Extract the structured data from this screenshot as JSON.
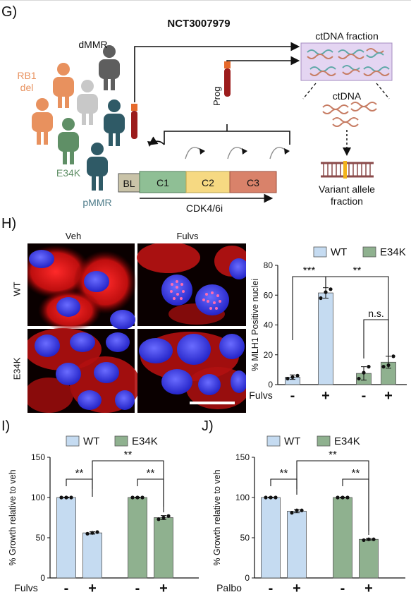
{
  "panel_g": {
    "letter": "G)",
    "trial_id": "NCT3007979",
    "labels": {
      "dmmr": "dMMR",
      "rb1_line1": "RB1",
      "rb1_line2": "del",
      "e34k": "E34K",
      "pmmr": "pMMR",
      "prog": "Prog",
      "ctdna_fraction": "ctDNA fraction",
      "ctdna": "ctDNA",
      "variant_line1": "Variant allele",
      "variant_line2": "fraction",
      "timeline_bl": "BL",
      "timeline_c1": "C1",
      "timeline_c2": "C2",
      "timeline_c3": "C3",
      "treatment": "CDK4/6i"
    },
    "colors": {
      "orange_person": "#e8915e",
      "gray_person": "#c8c8c8",
      "dark_person": "#5e5e5e",
      "green_person": "#5f8f66",
      "teal_person": "#2f5a66",
      "bl": "#c9c3a8",
      "c1": "#8fbf95",
      "c2": "#f6d982",
      "c3": "#d9826a",
      "ctdna_box": "#e4d5f2"
    }
  },
  "panel_h": {
    "letter": "H)",
    "col_veh": "Veh",
    "col_fulvs": "Fulvs",
    "row_wt": "WT",
    "row_e34k": "E34K"
  },
  "chart_data": [
    {
      "panel": "H)",
      "type": "bar",
      "ylabel": "% MLH1 Positive nuclei",
      "ylim": [
        0,
        80
      ],
      "yticks": [
        0,
        20,
        40,
        60,
        80
      ],
      "treatment_label": "Fulvs",
      "treatment_levels": [
        "-",
        "+",
        "-",
        "+"
      ],
      "legend": [
        "WT",
        "E34K"
      ],
      "legend_position": "top",
      "colors": [
        "#c5dbf1",
        "#8fb18f"
      ],
      "series": [
        {
          "name": "WT",
          "values": [
            5,
            61.5
          ],
          "points": [
            [
              4,
              5,
              6
            ],
            [
              58,
              62,
              64
            ]
          ]
        },
        {
          "name": "E34K",
          "values": [
            7.5,
            15
          ],
          "points": [
            [
              4,
              8,
              12
            ],
            [
              12,
              13,
              19
            ]
          ]
        }
      ],
      "significance": [
        {
          "label": "***",
          "from": 0,
          "to": 1
        },
        {
          "label": "**",
          "from": 1,
          "to": 3
        },
        {
          "label": "n.s.",
          "from": 2,
          "to": 3
        }
      ]
    },
    {
      "panel": "I)",
      "type": "bar",
      "ylabel": "% Growth relative to veh",
      "ylim": [
        0,
        150
      ],
      "yticks": [
        0,
        50,
        100,
        150
      ],
      "treatment_label": "Fulvs",
      "treatment_levels": [
        "-",
        "+",
        "-",
        "+"
      ],
      "legend": [
        "WT",
        "E34K"
      ],
      "legend_position": "top",
      "colors": [
        "#c5dbf1",
        "#8fb18f"
      ],
      "series": [
        {
          "name": "WT",
          "values": [
            100,
            56
          ],
          "points": [
            [
              100,
              100,
              100
            ],
            [
              55,
              56,
              57
            ]
          ]
        },
        {
          "name": "E34K",
          "values": [
            100,
            75
          ],
          "points": [
            [
              100,
              100,
              100
            ],
            [
              73,
              75,
              77
            ]
          ]
        }
      ],
      "significance": [
        {
          "label": "**",
          "from": 0,
          "to": 1
        },
        {
          "label": "**",
          "from": 1,
          "to": 3
        },
        {
          "label": "**",
          "from": 2,
          "to": 3
        }
      ]
    },
    {
      "panel": "J)",
      "type": "bar",
      "ylabel": "% Growth relative to veh",
      "ylim": [
        0,
        150
      ],
      "yticks": [
        0,
        50,
        100,
        150
      ],
      "treatment_label": "Palbo",
      "treatment_levels": [
        "-",
        "+",
        "-",
        "+"
      ],
      "legend": [
        "WT",
        "E34K"
      ],
      "legend_position": "top",
      "colors": [
        "#c5dbf1",
        "#8fb18f"
      ],
      "series": [
        {
          "name": "WT",
          "values": [
            100,
            83
          ],
          "points": [
            [
              100,
              100,
              100
            ],
            [
              81,
              84,
              84
            ]
          ]
        },
        {
          "name": "E34K",
          "values": [
            100,
            48
          ],
          "points": [
            [
              100,
              100,
              100
            ],
            [
              47,
              48,
              48
            ]
          ]
        }
      ],
      "significance": [
        {
          "label": "**",
          "from": 0,
          "to": 1
        },
        {
          "label": "**",
          "from": 1,
          "to": 3
        },
        {
          "label": "**",
          "from": 2,
          "to": 3
        }
      ]
    }
  ],
  "panel_i": {
    "letter": "I)"
  },
  "panel_j": {
    "letter": "J)"
  }
}
